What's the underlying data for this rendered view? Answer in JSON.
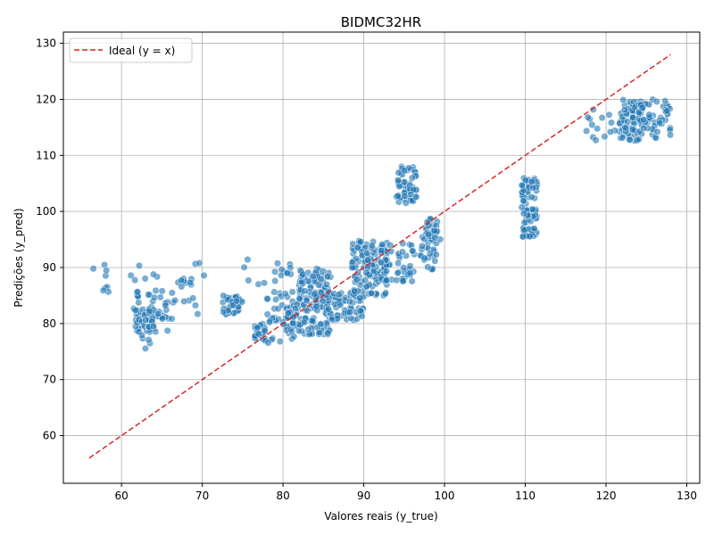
{
  "chart_data": {
    "type": "scatter",
    "title": "BIDMC32HR",
    "xlabel": "Valores reais (y_true)",
    "ylabel": "Predições (y_pred)",
    "xlim": [
      52.8,
      131.6
    ],
    "ylim": [
      51.5,
      132
    ],
    "xticks": [
      60,
      70,
      80,
      90,
      100,
      110,
      120,
      130
    ],
    "yticks": [
      60,
      70,
      80,
      90,
      100,
      110,
      120,
      130
    ],
    "grid": true,
    "legend_position": "top-left",
    "colors": {
      "points": "#1f77b4",
      "ideal_line": "#d62728",
      "grid": "#b0b0b0"
    },
    "series": [
      {
        "name": "",
        "kind": "points",
        "color": "#1f77b4",
        "x": [],
        "y": []
      },
      {
        "name": "Ideal (y = x)",
        "kind": "line",
        "style": "dashed",
        "color": "#d62728",
        "x": [
          56,
          128
        ],
        "y": [
          56,
          128
        ]
      }
    ],
    "point_clusters": [
      {
        "x": [
          56,
          59
        ],
        "y": [
          84.5,
          90.5
        ],
        "n": 8
      },
      {
        "x": [
          60,
          70.5
        ],
        "y": [
          86,
          91.5
        ],
        "n": 12
      },
      {
        "x": [
          61.5,
          62.5
        ],
        "y": [
          78.5,
          86
        ],
        "n": 22
      },
      {
        "x": [
          62.5,
          64
        ],
        "y": [
          75.5,
          83
        ],
        "n": 28
      },
      {
        "x": [
          63,
          66.5
        ],
        "y": [
          78.5,
          86
        ],
        "n": 34
      },
      {
        "x": [
          66.5,
          69.5
        ],
        "y": [
          81.5,
          88
        ],
        "n": 12
      },
      {
        "x": [
          72.5,
          75
        ],
        "y": [
          81.5,
          85
        ],
        "n": 40
      },
      {
        "x": [
          75,
          81
        ],
        "y": [
          87,
          91.5
        ],
        "n": 16
      },
      {
        "x": [
          76.5,
          78
        ],
        "y": [
          77,
          80
        ],
        "n": 24
      },
      {
        "x": [
          77.5,
          81.5
        ],
        "y": [
          76.5,
          86
        ],
        "n": 40
      },
      {
        "x": [
          80,
          86
        ],
        "y": [
          78,
          84
        ],
        "n": 90
      },
      {
        "x": [
          82,
          86
        ],
        "y": [
          84,
          90
        ],
        "n": 75
      },
      {
        "x": [
          86,
          90
        ],
        "y": [
          80.5,
          86
        ],
        "n": 60
      },
      {
        "x": [
          88.5,
          93
        ],
        "y": [
          84.5,
          95
        ],
        "n": 120
      },
      {
        "x": [
          92,
          96.5
        ],
        "y": [
          87.5,
          94.5
        ],
        "n": 50
      },
      {
        "x": [
          94,
          96.5
        ],
        "y": [
          101.5,
          108
        ],
        "n": 55
      },
      {
        "x": [
          97,
          99
        ],
        "y": [
          89.5,
          98
        ],
        "n": 40
      },
      {
        "x": [
          97.5,
          99.5
        ],
        "y": [
          95,
          99
        ],
        "n": 25
      },
      {
        "x": [
          109.5,
          111.5
        ],
        "y": [
          95.5,
          106
        ],
        "n": 90
      },
      {
        "x": [
          117,
          122
        ],
        "y": [
          112.5,
          118.5
        ],
        "n": 20
      },
      {
        "x": [
          122,
          124.5
        ],
        "y": [
          112.5,
          120
        ],
        "n": 60
      },
      {
        "x": [
          124,
          128
        ],
        "y": [
          113,
          120
        ],
        "n": 60
      }
    ]
  }
}
